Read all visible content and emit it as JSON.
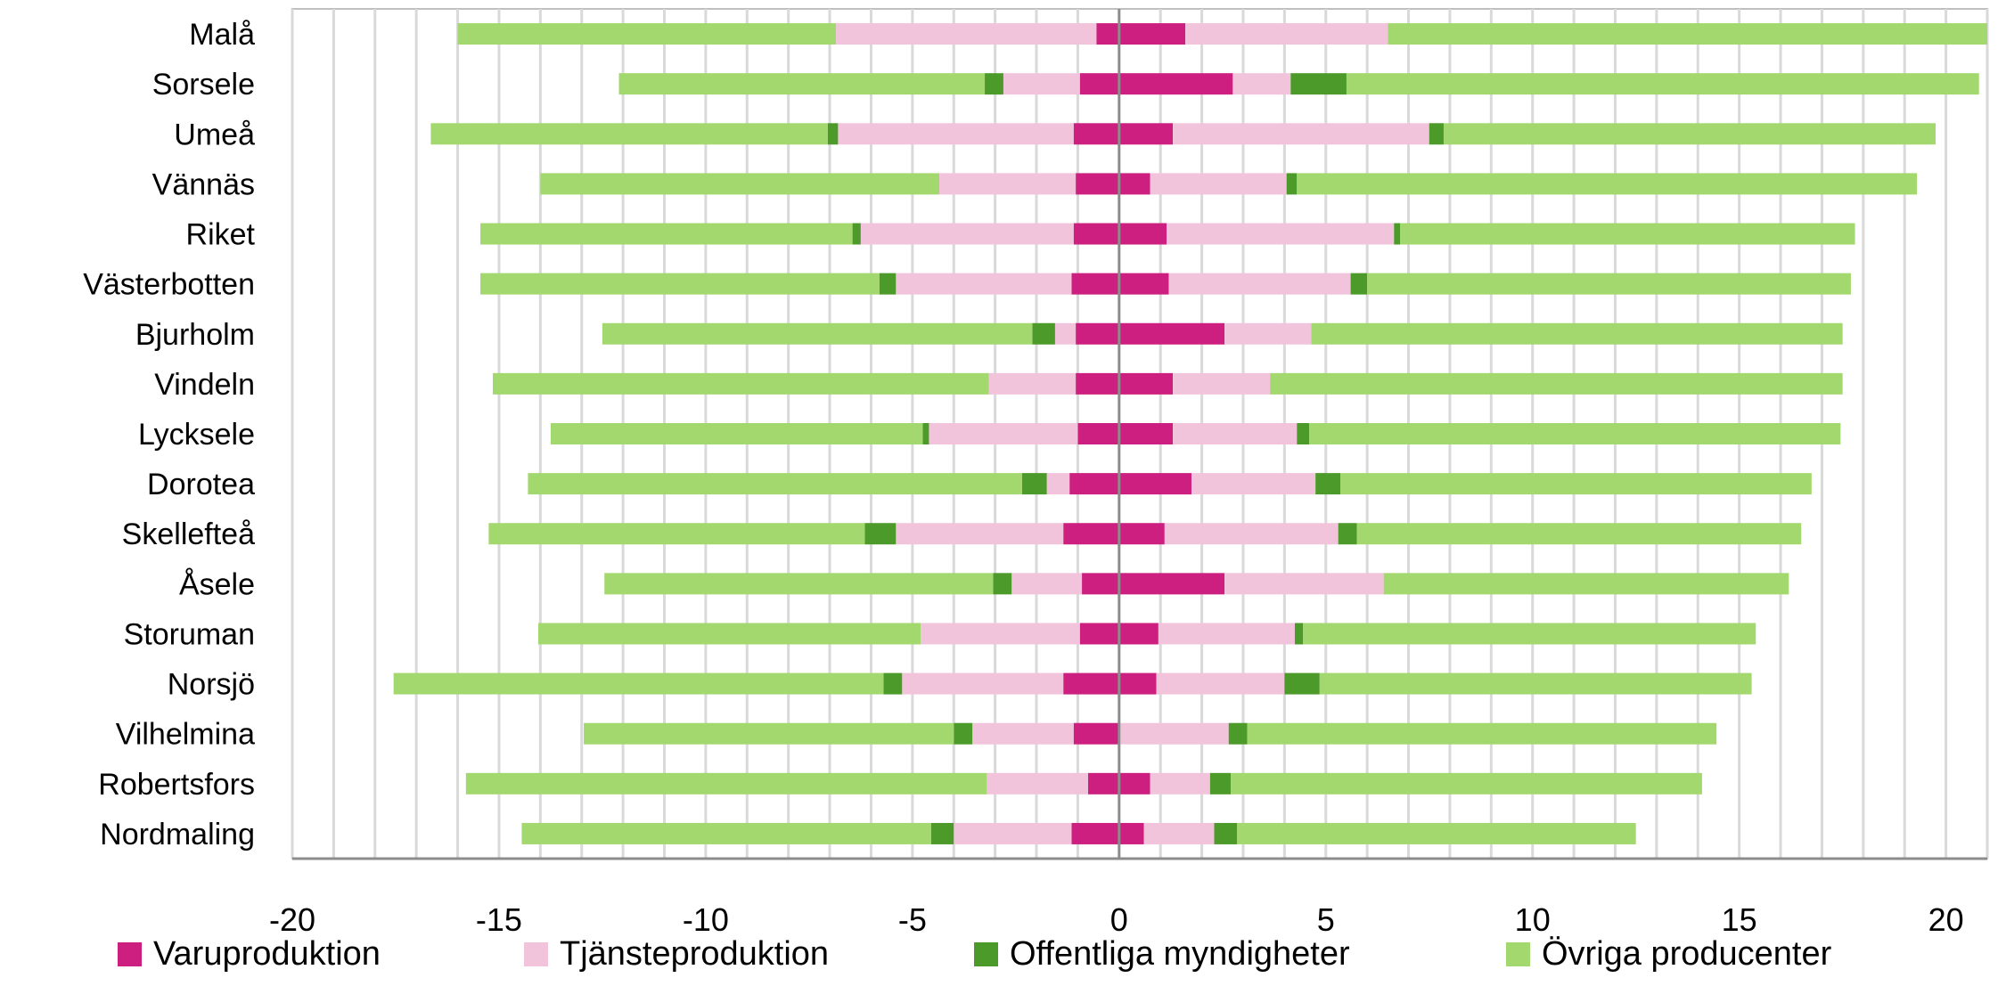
{
  "chart_data": {
    "type": "bar",
    "orientation": "horizontal",
    "stacked": "diverging",
    "categories": [
      "Malå",
      "Sorsele",
      "Umeå",
      "Vännäs",
      "Riket",
      "Västerbotten",
      "Bjurholm",
      "Vindeln",
      "Lycksele",
      "Dorotea",
      "Skellefteå",
      "Åsele",
      "Storuman",
      "Norsjö",
      "Vilhelmina",
      "Robertsfors",
      "Nordmaling"
    ],
    "xlim": [
      -20,
      21
    ],
    "x_ticks": [
      -20,
      -15,
      -10,
      -5,
      0,
      5,
      10,
      15,
      20
    ],
    "x_tick_labels": [
      "-20",
      "-15",
      "-10",
      "-5",
      "0",
      "5",
      "10",
      "15",
      "20"
    ],
    "grid": "vertical gridlines every 1 unit",
    "legend_position": "bottom",
    "title": "",
    "xlabel": "",
    "ylabel": "",
    "series": [
      {
        "name": "Varuproduktion",
        "color": "#cc1f80",
        "neg": [
          0.55,
          0.95,
          1.1,
          1.05,
          1.1,
          1.15,
          1.05,
          1.05,
          1.0,
          1.2,
          1.35,
          0.9,
          0.95,
          1.35,
          1.1,
          0.75,
          1.15
        ],
        "pos": [
          1.6,
          2.75,
          1.3,
          0.75,
          1.15,
          1.2,
          2.55,
          1.3,
          1.3,
          1.75,
          1.1,
          2.55,
          0.95,
          0.9,
          0.0,
          0.75,
          0.6
        ]
      },
      {
        "name": "Tjänsteproduktion",
        "color": "#f2c4dc",
        "neg": [
          6.3,
          1.85,
          5.7,
          3.3,
          5.15,
          4.25,
          0.5,
          2.1,
          3.6,
          0.55,
          4.05,
          1.7,
          3.85,
          3.9,
          2.45,
          2.45,
          2.85
        ],
        "pos": [
          4.9,
          1.4,
          6.2,
          3.3,
          5.5,
          4.4,
          2.1,
          2.35,
          3.0,
          3.0,
          4.2,
          3.85,
          3.3,
          3.1,
          2.65,
          1.45,
          1.7
        ]
      },
      {
        "name": "Offentliga myndigheter",
        "color": "#4c9a2a",
        "neg": [
          0.0,
          0.45,
          0.25,
          0.0,
          0.2,
          0.4,
          0.55,
          0.0,
          0.15,
          0.6,
          0.75,
          0.45,
          0.0,
          0.45,
          0.45,
          0.0,
          0.55
        ],
        "pos": [
          0.0,
          1.35,
          0.35,
          0.25,
          0.15,
          0.4,
          0.0,
          0.0,
          0.3,
          0.6,
          0.45,
          0.0,
          0.2,
          0.85,
          0.45,
          0.5,
          0.55
        ]
      },
      {
        "name": "Övriga producenter",
        "color": "#a3d86e",
        "neg": [
          9.15,
          8.85,
          9.6,
          9.65,
          9.0,
          9.65,
          10.4,
          12.0,
          9.0,
          11.95,
          9.1,
          9.4,
          9.25,
          11.85,
          8.95,
          12.6,
          9.9
        ],
        "pos": [
          14.5,
          15.3,
          11.9,
          15.0,
          11.0,
          11.7,
          12.85,
          13.85,
          12.85,
          11.4,
          10.75,
          9.8,
          10.95,
          10.45,
          11.35,
          11.4,
          9.65
        ]
      }
    ]
  }
}
